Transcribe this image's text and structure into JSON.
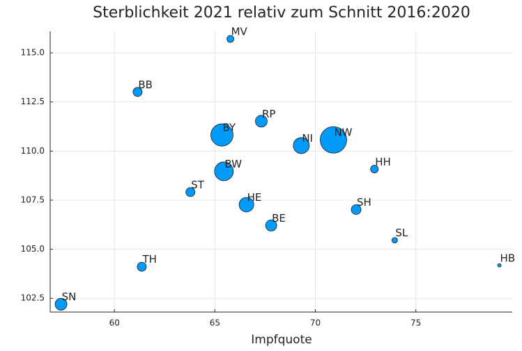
{
  "chart_data": {
    "type": "scatter",
    "title": "Sterblichkeit 2021 relativ zum Schnitt 2016:2020",
    "x_label": "Impfquote",
    "categories": [
      "MV",
      "BB",
      "RP",
      "BY",
      "NI",
      "NW",
      "HH",
      "BW",
      "ST",
      "HE",
      "SH",
      "BE",
      "SL",
      "HB",
      "TH",
      "SN"
    ],
    "x": [
      65.77,
      61.15,
      67.31,
      65.35,
      69.3,
      70.9,
      72.94,
      65.45,
      63.78,
      66.57,
      72.03,
      67.8,
      73.95,
      79.16,
      61.36,
      57.34
    ],
    "values": [
      115.71,
      113.01,
      111.52,
      110.82,
      110.28,
      110.57,
      109.08,
      108.97,
      107.91,
      107.27,
      107.02,
      106.21,
      105.46,
      104.18,
      104.11,
      102.2
    ],
    "sizes": [
      5,
      6.5,
      8.5,
      16,
      11.5,
      19,
      5.5,
      13.5,
      6.5,
      10.5,
      7,
      8,
      4,
      2.5,
      6.5,
      8.5
    ],
    "color": "#009af9",
    "xlim": [
      56.8,
      79.8
    ],
    "ylim": [
      101.8,
      116.1
    ],
    "xticks": [
      60,
      65,
      70,
      75
    ],
    "yticks": [
      102.5,
      {
        "value": 105,
        "label": "105.0"
      },
      107.5,
      {
        "value": 110,
        "label": "110.0"
      },
      112.5,
      {
        "value": 115,
        "label": "115.0"
      }
    ],
    "grid": true
  }
}
